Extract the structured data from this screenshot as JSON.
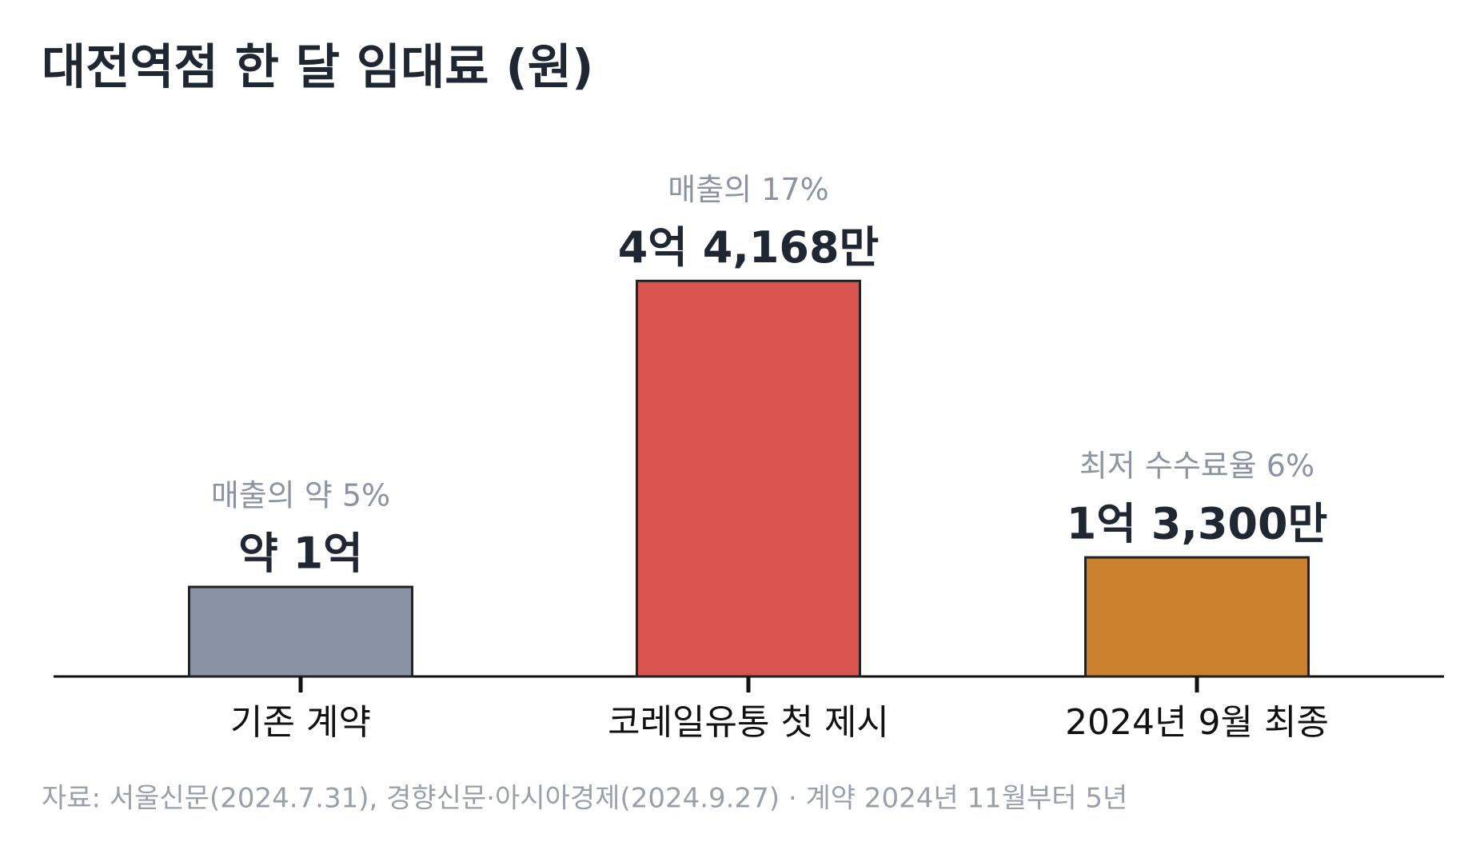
{
  "chart_data": {
    "type": "bar",
    "title": "대전역점 한 달 임대료 (원)",
    "categories": [
      "기존 계약",
      "코레일유통 첫 제시",
      "2024년 9월 최종"
    ],
    "values": [
      100000000,
      441680000,
      133000000
    ],
    "value_labels": [
      "약 1억",
      "4억 4,168만",
      "1억 3,300만"
    ],
    "annotations": [
      "매출의 약 5%",
      "매출의 17%",
      "최저 수수료율 6%"
    ],
    "colors": [
      "#8a93a5",
      "#d9534f",
      "#c9812e"
    ],
    "ylim": [
      0,
      500000000
    ],
    "source": "자료: 서울신문(2024.7.31), 경향신문·아시아경제(2024.9.27) · 계약 2024년 11월부터 5년"
  }
}
